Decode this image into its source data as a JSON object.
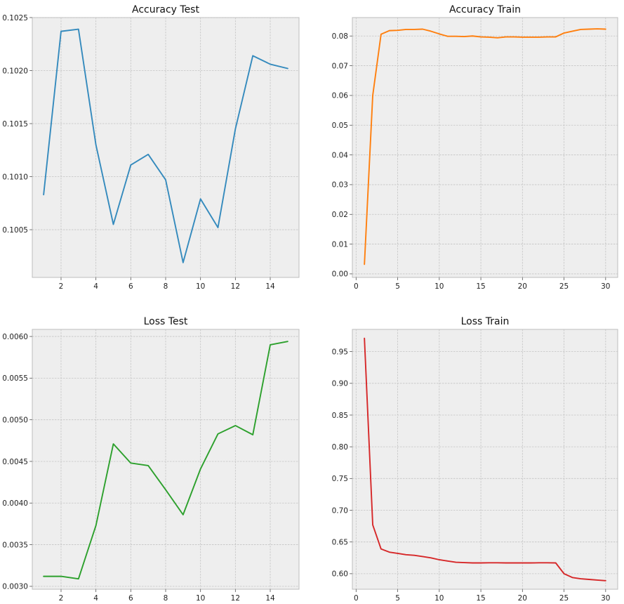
{
  "chart_data": [
    {
      "type": "line",
      "title": "Accuracy Test",
      "color": "#348abd",
      "grid": true,
      "xlim": [
        0.35,
        15.65
      ],
      "ylim": [
        0.10005,
        0.1025
      ],
      "xticks": [
        2,
        4,
        6,
        8,
        10,
        12,
        14
      ],
      "xtick_labels": [
        "2",
        "4",
        "6",
        "8",
        "10",
        "12",
        "14"
      ],
      "yticks": [
        0.1005,
        0.101,
        0.1015,
        0.102,
        0.1025
      ],
      "ytick_labels": [
        "0.1005",
        "0.1010",
        "0.1015",
        "0.1020",
        "0.1025"
      ],
      "x": [
        1,
        2,
        3,
        4,
        5,
        6,
        7,
        8,
        9,
        10,
        11,
        12,
        13,
        14,
        15
      ],
      "y": [
        0.10083,
        0.10237,
        0.10239,
        0.1013,
        0.10055,
        0.10111,
        0.10121,
        0.10097,
        0.10019,
        0.10079,
        0.10052,
        0.10145,
        0.10214,
        0.10206,
        0.10202
      ]
    },
    {
      "type": "line",
      "title": "Accuracy Train",
      "color": "#ff7f0e",
      "grid": true,
      "xlim": [
        -0.45,
        31.45
      ],
      "ylim": [
        -0.0012,
        0.0862
      ],
      "xticks": [
        0,
        5,
        10,
        15,
        20,
        25,
        30
      ],
      "xtick_labels": [
        "0",
        "5",
        "10",
        "15",
        "20",
        "25",
        "30"
      ],
      "yticks": [
        0,
        0.01,
        0.02,
        0.03,
        0.04,
        0.05,
        0.06,
        0.07,
        0.08
      ],
      "ytick_labels": [
        "0.00",
        "0.01",
        "0.02",
        "0.03",
        "0.04",
        "0.05",
        "0.06",
        "0.07",
        "0.08"
      ],
      "x": [
        1,
        2,
        3,
        4,
        5,
        6,
        7,
        8,
        9,
        10,
        11,
        12,
        13,
        14,
        15,
        16,
        17,
        18,
        19,
        20,
        21,
        22,
        23,
        24,
        25,
        26,
        27,
        28,
        29,
        30
      ],
      "y": [
        0.0032,
        0.06,
        0.0806,
        0.0818,
        0.0819,
        0.0822,
        0.0822,
        0.0823,
        0.0816,
        0.0807,
        0.0799,
        0.0799,
        0.0798,
        0.08,
        0.0797,
        0.0796,
        0.0794,
        0.0797,
        0.0797,
        0.0796,
        0.0796,
        0.0796,
        0.0797,
        0.0797,
        0.081,
        0.0816,
        0.0822,
        0.0823,
        0.0824,
        0.0823
      ]
    },
    {
      "type": "line",
      "title": "Loss Test",
      "color": "#2ca02c",
      "grid": true,
      "xlim": [
        0.35,
        15.65
      ],
      "ylim": [
        0.002965,
        0.006085
      ],
      "xticks": [
        2,
        4,
        6,
        8,
        10,
        12,
        14
      ],
      "xtick_labels": [
        "2",
        "4",
        "6",
        "8",
        "10",
        "12",
        "14"
      ],
      "yticks": [
        0.003,
        0.0035,
        0.004,
        0.0045,
        0.005,
        0.0055,
        0.006
      ],
      "ytick_labels": [
        "0.0030",
        "0.0035",
        "0.0040",
        "0.0045",
        "0.0050",
        "0.0055",
        "0.0060"
      ],
      "x": [
        1,
        2,
        3,
        4,
        5,
        6,
        7,
        8,
        9,
        10,
        11,
        12,
        13,
        14,
        15
      ],
      "y": [
        0.00312,
        0.00312,
        0.00309,
        0.00373,
        0.00471,
        0.00448,
        0.00445,
        0.00416,
        0.00386,
        0.00441,
        0.00483,
        0.00493,
        0.00482,
        0.0059,
        0.00594
      ]
    },
    {
      "type": "line",
      "title": "Loss Train",
      "color": "#d62728",
      "grid": true,
      "xlim": [
        -0.45,
        31.45
      ],
      "ylim": [
        0.5755,
        0.985
      ],
      "xticks": [
        0,
        5,
        10,
        15,
        20,
        25,
        30
      ],
      "xtick_labels": [
        "0",
        "5",
        "10",
        "15",
        "20",
        "25",
        "30"
      ],
      "yticks": [
        0.6,
        0.65,
        0.7,
        0.75,
        0.8,
        0.85,
        0.9,
        0.95
      ],
      "ytick_labels": [
        "0.60",
        "0.65",
        "0.70",
        "0.75",
        "0.80",
        "0.85",
        "0.90",
        "0.95"
      ],
      "x": [
        1,
        2,
        3,
        4,
        5,
        6,
        7,
        8,
        9,
        10,
        11,
        12,
        13,
        14,
        15,
        16,
        17,
        18,
        19,
        20,
        21,
        22,
        23,
        24,
        25,
        26,
        27,
        28,
        29,
        30
      ],
      "y": [
        0.971,
        0.677,
        0.639,
        0.634,
        0.632,
        0.63,
        0.629,
        0.627,
        0.625,
        0.622,
        0.62,
        0.618,
        0.6175,
        0.617,
        0.617,
        0.6172,
        0.6172,
        0.617,
        0.617,
        0.617,
        0.617,
        0.6172,
        0.6172,
        0.617,
        0.6,
        0.594,
        0.592,
        0.591,
        0.59,
        0.589
      ]
    }
  ]
}
